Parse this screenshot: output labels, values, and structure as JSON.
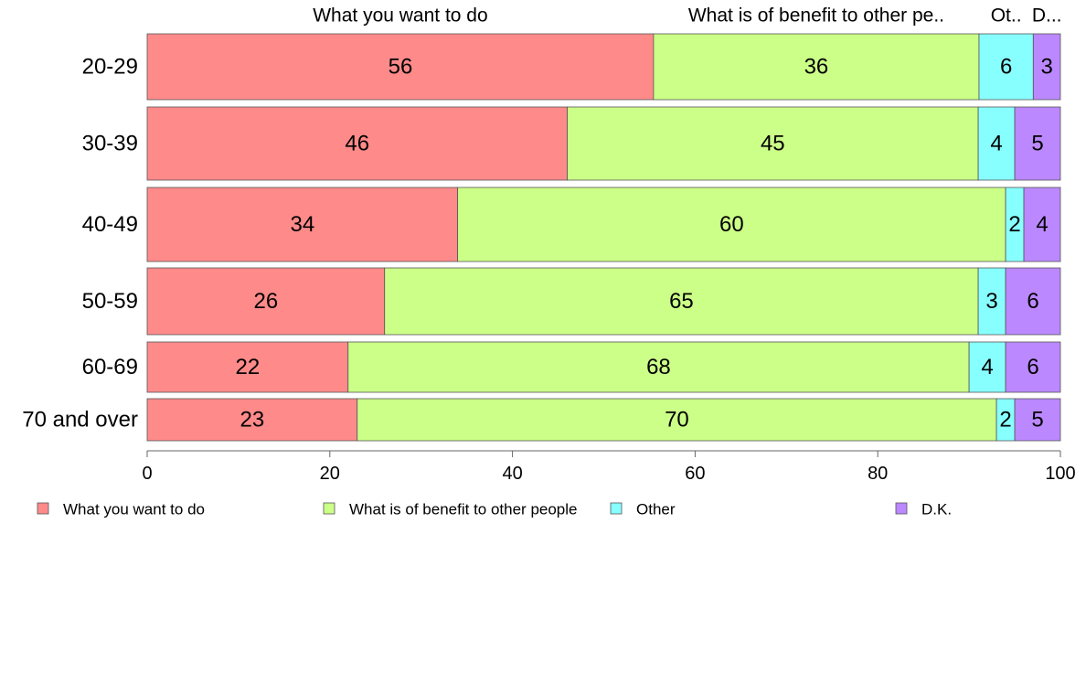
{
  "chart_data": {
    "type": "bar",
    "orientation": "horizontal",
    "stacked": true,
    "categories": [
      "20-29",
      "30-39",
      "40-49",
      "50-59",
      "60-69",
      "70 and over"
    ],
    "series": [
      {
        "name": "What you want to do",
        "color": "#ff8a8a",
        "values": [
          56,
          46,
          34,
          26,
          22,
          23
        ]
      },
      {
        "name": "What is of benefit to other people",
        "color": "#ccff88",
        "values": [
          36,
          45,
          60,
          65,
          68,
          70
        ]
      },
      {
        "name": "Other",
        "color": "#88ffff",
        "values": [
          6,
          4,
          2,
          3,
          4,
          2
        ]
      },
      {
        "name": "D.K.",
        "color": "#bb88ff",
        "values": [
          3,
          5,
          4,
          6,
          6,
          5
        ]
      }
    ],
    "top_labels": [
      "What you want to do",
      "What is of benefit to other pe..",
      "Ot..",
      "D..."
    ],
    "xlim": [
      0,
      100
    ],
    "xticks": [
      0,
      20,
      40,
      60,
      80,
      100
    ],
    "legend": {
      "position": "bottom",
      "items": [
        "What you want to do",
        "What is of benefit to other people",
        "Other",
        "D.K."
      ]
    },
    "grid": false
  }
}
